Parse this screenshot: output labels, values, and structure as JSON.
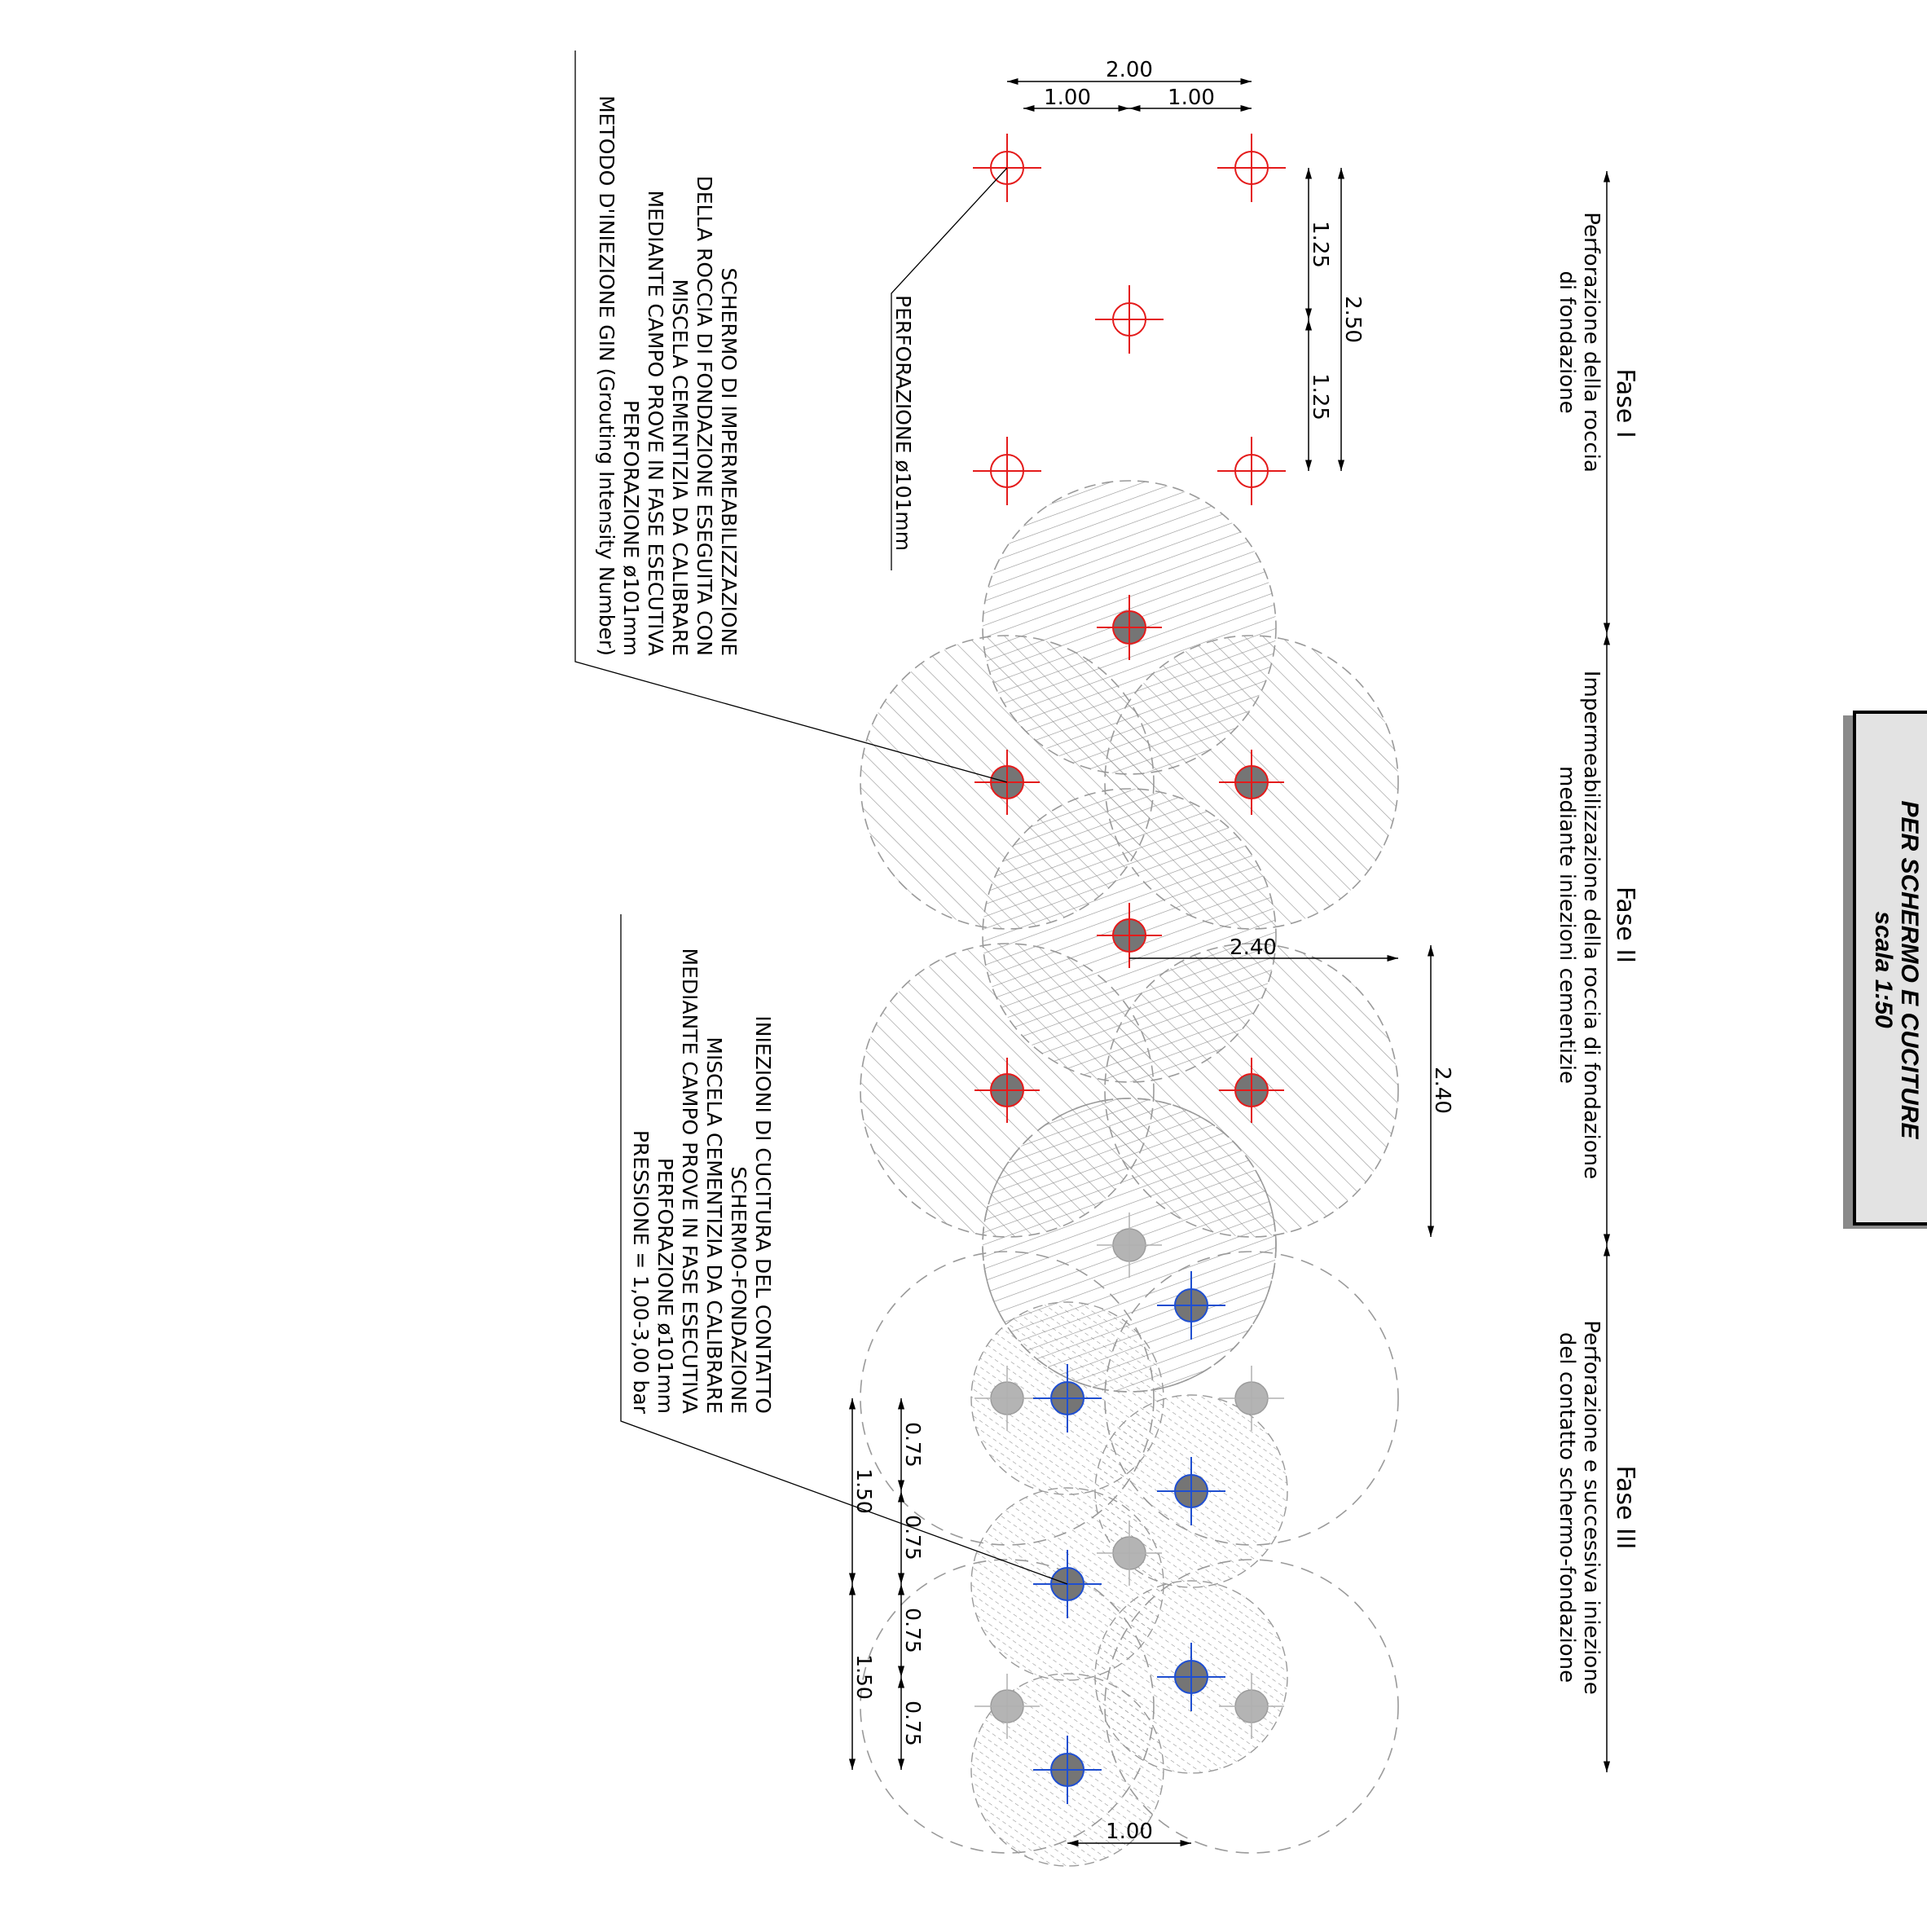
{
  "title_block": {
    "line1": "PER SCHERMO E CUCITURE",
    "line2": "scala 1:50"
  },
  "phases": {
    "fase1": {
      "label": "Fase I",
      "line1": "Perforazione della roccia",
      "line2": "di fondazione"
    },
    "fase2": {
      "label": "Fase II",
      "line1": "Impermeabilizzazione della roccia di fondazione",
      "line2": "mediante iniezioni cementizie"
    },
    "fase3": {
      "label": "Fase III",
      "line1": "Perforazione e successiva iniezione",
      "line2": "del contatto schermo-fondazione"
    }
  },
  "notes": {
    "perforazione": "PERFORAZIONE ø101mm",
    "schermo": [
      "SCHERMO DI IMPERMEABILIZZAZIONE",
      "DELLA ROCCIA DI FONDAZIONE ESEGUITA CON",
      "MISCELA CEMENTIZIA DA CALIBRARE",
      "MEDIANTE CAMPO PROVE IN FASE ESECUTIVA",
      "PERFORAZIONE ø101mm",
      "METODO D'INIEZIONE GIN (Grouting Intensity Number)"
    ],
    "cucitura": [
      "INIEZIONI DI CUCITURA DEL CONTATTO",
      "SCHERMO-FONDAZIONE",
      "MISCELA CEMENTIZIA DA CALIBRARE",
      "MEDIANTE CAMPO PROVE IN FASE ESECUTIVA",
      "PERFORAZIONE ø101mm",
      "PRESSIONE = 1,00-3,00 bar"
    ]
  },
  "dimensions": {
    "top_total": "2.00",
    "top_left": "1.00",
    "top_right": "1.00",
    "fase1_half_a": "1.25",
    "fase1_half_b": "1.25",
    "fase1_total": "2.50",
    "fase2_radius": "2.40",
    "fase2_spacing": "2.40",
    "fase3_a": "0.75",
    "fase3_b": "0.75",
    "fase3_c": "0.75",
    "fase3_d": "0.75",
    "fase3_e": "1.50",
    "fase3_f": "1.50",
    "fase3_bottom": "1.00"
  },
  "colors": {
    "perforation": "#e41b1b",
    "cucitura": "#1f4fd1",
    "hole_fill": "#757575",
    "hatch": "#8c8c8c",
    "circle_outline": "#9a9a9a",
    "grey_hole": "#b4b4b4"
  }
}
